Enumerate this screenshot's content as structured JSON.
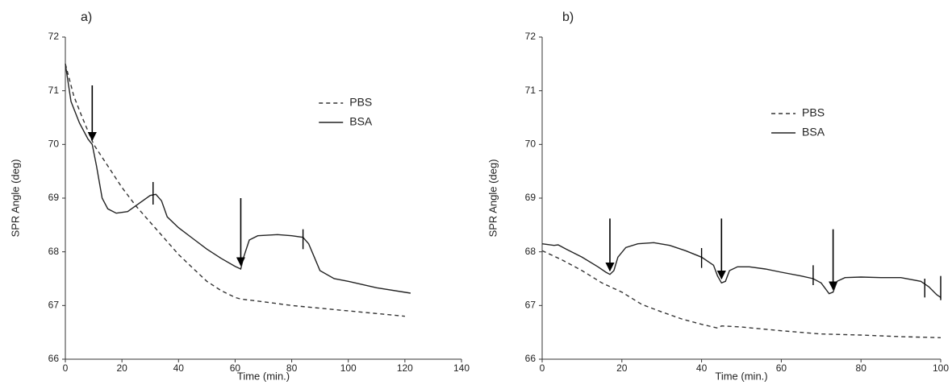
{
  "chart_data": [
    {
      "type": "line",
      "title": "a)",
      "x_label": "Time (min.)",
      "y_label": "SPR Angle (deg)",
      "xlim": [
        0,
        140
      ],
      "xticks": [
        0,
        20,
        40,
        60,
        80,
        100,
        120,
        140
      ],
      "ylim": [
        66,
        72
      ],
      "yticks": [
        66,
        67,
        68,
        69,
        70,
        71,
        72
      ],
      "series": [
        {
          "name": "PBS",
          "color": "#333333",
          "line_style": "dashed",
          "x": [
            0,
            3,
            6,
            10,
            15,
            20,
            25,
            30,
            35,
            40,
            45,
            50,
            55,
            60,
            62,
            70,
            80,
            90,
            100,
            110,
            120
          ],
          "values": [
            71.5,
            70.9,
            70.5,
            70.0,
            69.6,
            69.2,
            68.85,
            68.55,
            68.25,
            67.95,
            67.7,
            67.45,
            67.28,
            67.15,
            67.12,
            67.07,
            67.0,
            66.95,
            66.9,
            66.85,
            66.8
          ]
        },
        {
          "name": "BSA",
          "color": "#222222",
          "line_style": "solid",
          "x": [
            0,
            2,
            5,
            8,
            9.5,
            11,
            13,
            15,
            18,
            22,
            26,
            30,
            32,
            34,
            36,
            40,
            45,
            50,
            55,
            60,
            62,
            63,
            65,
            68,
            75,
            80,
            84,
            86,
            88,
            90,
            95,
            100,
            110,
            122
          ],
          "values": [
            71.5,
            70.8,
            70.4,
            70.1,
            70.0,
            69.6,
            69.0,
            68.8,
            68.72,
            68.75,
            68.9,
            69.05,
            69.07,
            68.95,
            68.65,
            68.45,
            68.25,
            68.05,
            67.88,
            67.73,
            67.68,
            67.9,
            68.22,
            68.3,
            68.32,
            68.3,
            68.27,
            68.15,
            67.9,
            67.65,
            67.5,
            67.45,
            67.33,
            67.23
          ]
        }
      ],
      "arrows": [
        {
          "x": 9.5,
          "y_top": 71.1,
          "y_tip": 70.08
        },
        {
          "x": 62,
          "y_top": 69.0,
          "y_tip": 67.75
        }
      ],
      "bars": [
        {
          "x": 31,
          "y_top": 69.3,
          "y_bottom": 68.88
        },
        {
          "x": 84,
          "y_top": 68.42,
          "y_bottom": 68.05
        }
      ]
    },
    {
      "type": "line",
      "title": "b)",
      "x_label": "Time (min.)",
      "y_label": "SPR Angle (deg)",
      "xlim": [
        0,
        100
      ],
      "xticks": [
        0,
        20,
        40,
        60,
        80,
        100
      ],
      "ylim": [
        66,
        72
      ],
      "yticks": [
        66,
        67,
        68,
        69,
        70,
        71,
        72
      ],
      "series": [
        {
          "name": "PBS",
          "color": "#333333",
          "line_style": "dashed",
          "x": [
            0,
            5,
            10,
            15,
            20,
            25,
            30,
            35,
            40,
            44,
            45,
            50,
            60,
            70,
            80,
            90,
            100
          ],
          "values": [
            68.02,
            67.85,
            67.65,
            67.42,
            67.25,
            67.02,
            66.88,
            66.75,
            66.65,
            66.58,
            66.62,
            66.6,
            66.53,
            66.47,
            66.45,
            66.42,
            66.4
          ]
        },
        {
          "name": "BSA",
          "color": "#222222",
          "line_style": "solid",
          "x": [
            0,
            3,
            4,
            6,
            10,
            14,
            16,
            17,
            18,
            19,
            21,
            24,
            28,
            32,
            36,
            40,
            43,
            44,
            45,
            46,
            47,
            49,
            52,
            56,
            60,
            65,
            68,
            70,
            72,
            73,
            74,
            76,
            80,
            85,
            90,
            95,
            97,
            99,
            100
          ],
          "values": [
            68.15,
            68.12,
            68.13,
            68.05,
            67.9,
            67.72,
            67.62,
            67.58,
            67.65,
            67.9,
            68.08,
            68.15,
            68.17,
            68.12,
            68.02,
            67.9,
            67.75,
            67.55,
            67.42,
            67.45,
            67.65,
            67.72,
            67.72,
            67.68,
            67.62,
            67.55,
            67.5,
            67.42,
            67.22,
            67.25,
            67.45,
            67.52,
            67.53,
            67.52,
            67.52,
            67.45,
            67.35,
            67.2,
            67.15
          ]
        }
      ],
      "arrows": [
        {
          "x": 17,
          "y_top": 68.62,
          "y_tip": 67.65
        },
        {
          "x": 45,
          "y_top": 68.62,
          "y_tip": 67.5
        },
        {
          "x": 73,
          "y_top": 68.42,
          "y_tip": 67.3
        }
      ],
      "bars": [
        {
          "x": 40,
          "y_top": 68.07,
          "y_bottom": 67.7
        },
        {
          "x": 68,
          "y_top": 67.75,
          "y_bottom": 67.38
        },
        {
          "x": 96,
          "y_top": 67.5,
          "y_bottom": 67.15
        },
        {
          "x": 100,
          "y_top": 67.55,
          "y_bottom": 67.1
        }
      ]
    }
  ]
}
